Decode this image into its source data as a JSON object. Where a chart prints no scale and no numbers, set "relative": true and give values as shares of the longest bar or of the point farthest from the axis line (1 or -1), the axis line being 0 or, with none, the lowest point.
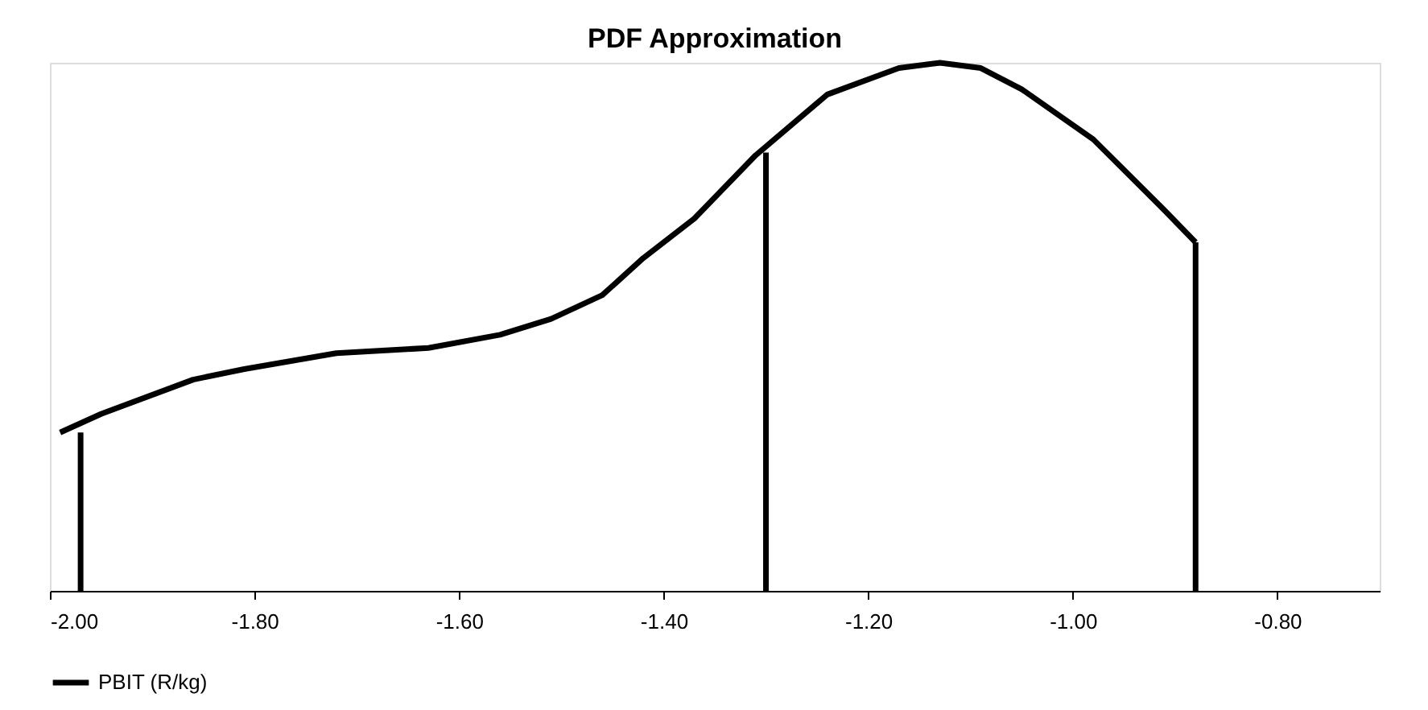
{
  "chart_data": {
    "type": "line",
    "title": "PDF Approximation",
    "relative": true,
    "line_style": "solid",
    "marker": "none",
    "grid": false,
    "legend": "bottom",
    "tick_labels": "x",
    "xlim": [
      -2.0,
      -0.7
    ],
    "xticks": [
      {
        "value": -2.0,
        "label": "-2.00"
      },
      {
        "value": -1.8,
        "label": "-1.80"
      },
      {
        "value": -1.6,
        "label": "-1.60"
      },
      {
        "value": -1.4,
        "label": "-1.40"
      },
      {
        "value": -1.2,
        "label": "-1.20"
      },
      {
        "value": -1.0,
        "label": "-1.00"
      },
      {
        "value": -0.8,
        "label": "-0.80"
      }
    ],
    "series": [
      {
        "name": "PBIT (R/kg)",
        "color": "#000000",
        "x": [
          -1.99,
          -1.95,
          -1.86,
          -1.81,
          -1.72,
          -1.63,
          -1.56,
          -1.51,
          -1.46,
          -1.42,
          -1.37,
          -1.31,
          -1.24,
          -1.17,
          -1.13,
          -1.09,
          -1.05,
          -0.98,
          -0.91,
          -0.88
        ],
        "values": [
          0.3,
          0.335,
          0.4,
          0.42,
          0.45,
          0.46,
          0.485,
          0.515,
          0.56,
          0.63,
          0.705,
          0.825,
          0.94,
          0.99,
          1.0,
          0.99,
          0.95,
          0.855,
          0.72,
          0.66
        ]
      },
      {
        "type": "line",
        "color": "#000000",
        "x": [
          -1.97,
          -1.97
        ],
        "values": [
          0,
          0.3
        ]
      },
      {
        "type": "line",
        "color": "#000000",
        "x": [
          -1.3,
          -1.3
        ],
        "values": [
          0,
          0.83
        ]
      },
      {
        "type": "line",
        "color": "#000000",
        "x": [
          -0.88,
          -0.88
        ],
        "values": [
          0,
          0.66
        ]
      }
    ]
  }
}
